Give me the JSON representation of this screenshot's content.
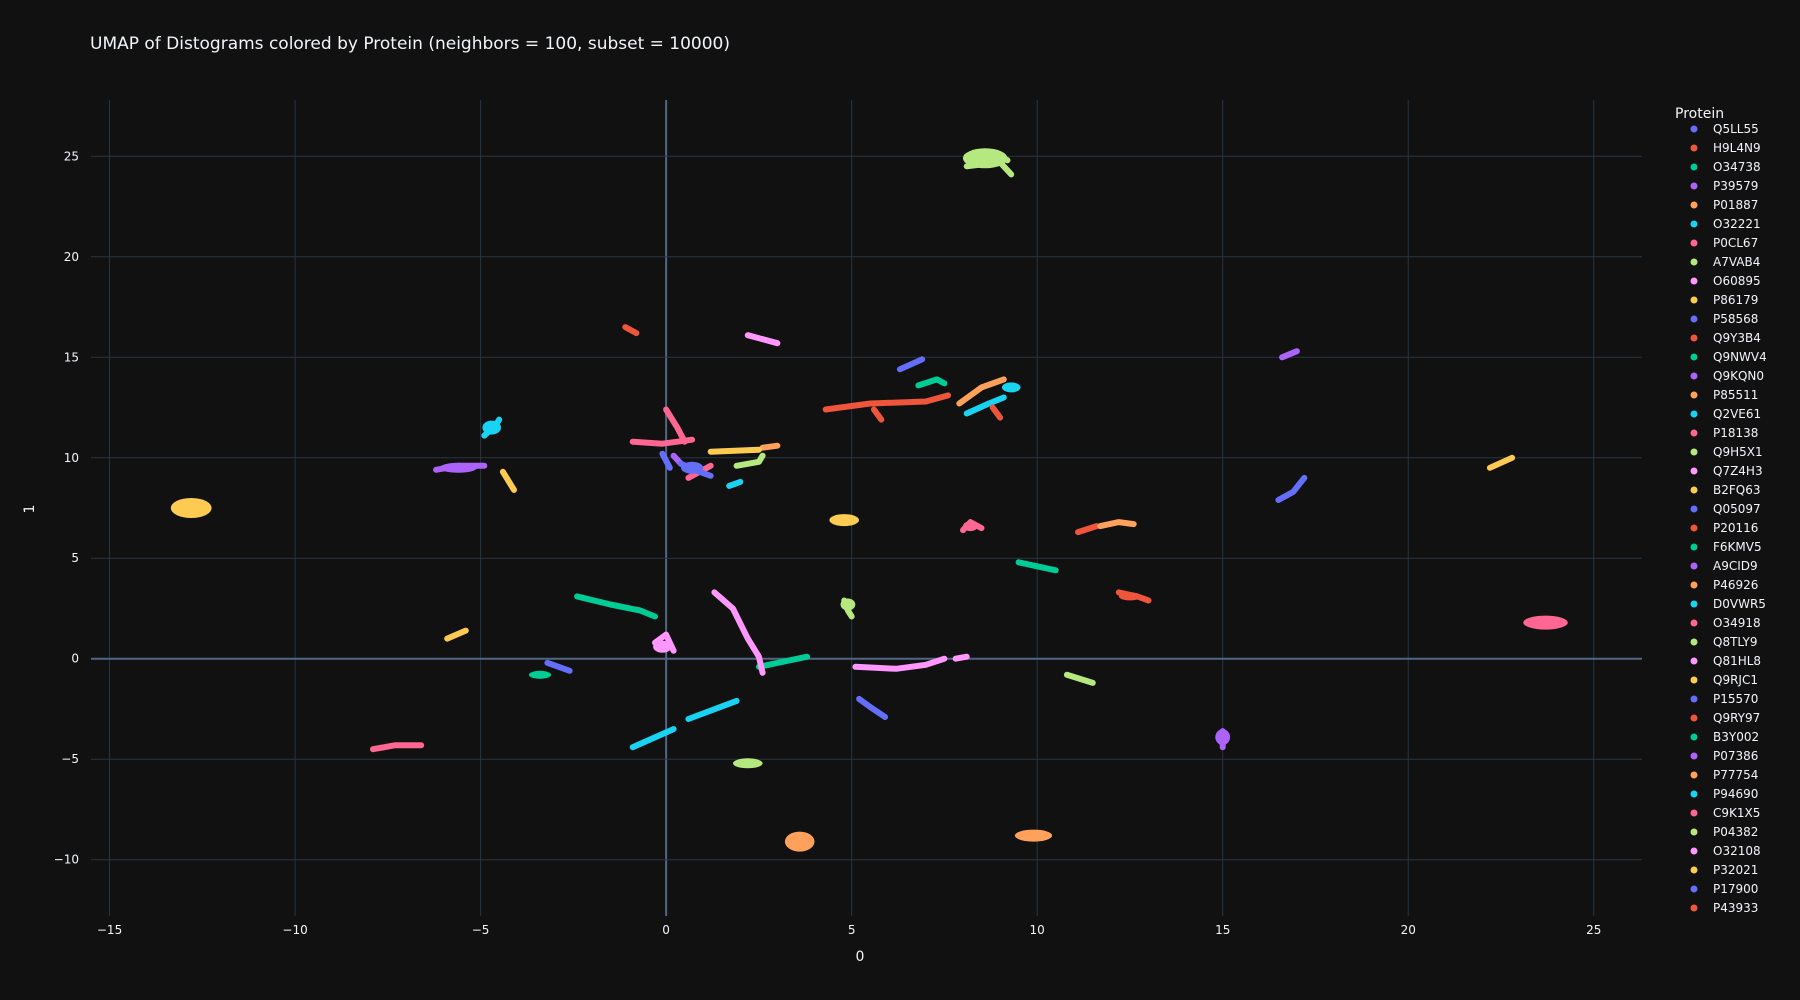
{
  "chart_data": {
    "type": "scatter",
    "title": "UMAP of Distograms colored by Protein (neighbors = 100, subset = 10000)",
    "xlabel": "0",
    "ylabel": "1",
    "xlim": [
      -15.5,
      26.3
    ],
    "ylim": [
      -12.8,
      27.8
    ],
    "xticks": [
      -15,
      -10,
      -5,
      0,
      5,
      10,
      15,
      20,
      25
    ],
    "yticks": [
      -10,
      -5,
      0,
      5,
      10,
      15,
      20,
      25
    ],
    "xtick_labels": [
      "−15",
      "−10",
      "−5",
      "0",
      "5",
      "10",
      "15",
      "20",
      "25"
    ],
    "ytick_labels": [
      "−10",
      "−5",
      "0",
      "5",
      "10",
      "15",
      "20",
      "25"
    ],
    "grid": true,
    "legend_title": "Protein",
    "legend_position": "right",
    "background": "#111111",
    "grid_color": "#283442",
    "zeroline_color": "#506784",
    "series": [
      {
        "name": "Q5LL55",
        "color": "#636efa",
        "segments": [
          [
            [
              -0.1,
              10.2
            ],
            [
              0.1,
              9.5
            ]
          ]
        ],
        "blobs": []
      },
      {
        "name": "H9L4N9",
        "color": "#EF553B",
        "segments": [
          [
            [
              4.3,
              12.4
            ],
            [
              5.5,
              12.7
            ],
            [
              7.0,
              12.8
            ],
            [
              7.6,
              13.1
            ]
          ],
          [
            [
              5.6,
              12.4
            ],
            [
              5.8,
              11.9
            ]
          ]
        ],
        "blobs": []
      },
      {
        "name": "O34738",
        "color": "#00cc96",
        "segments": [
          [
            [
              2.5,
              -0.4
            ],
            [
              3.8,
              0.1
            ]
          ]
        ],
        "blobs": []
      },
      {
        "name": "P39579",
        "color": "#ab63fa",
        "segments": [
          [
            [
              0.2,
              10.1
            ],
            [
              0.4,
              9.7
            ]
          ]
        ],
        "blobs": []
      },
      {
        "name": "P01887",
        "color": "#FFA15A",
        "segments": [
          [
            [
              2.6,
              10.5
            ],
            [
              3.0,
              10.6
            ]
          ]
        ],
        "blobs": []
      },
      {
        "name": "O32221",
        "color": "#19d3f3",
        "segments": [
          [
            [
              1.7,
              8.6
            ],
            [
              2.0,
              8.8
            ]
          ]
        ],
        "blobs": []
      },
      {
        "name": "P0CL67",
        "color": "#FF6692",
        "segments": [
          [
            [
              0.6,
              9.0
            ],
            [
              1.2,
              9.6
            ]
          ]
        ],
        "blobs": []
      },
      {
        "name": "A7VAB4",
        "color": "#B6E880",
        "segments": [
          [
            [
              8.1,
              24.5
            ],
            [
              9.0,
              24.7
            ],
            [
              9.3,
              24.1
            ]
          ],
          [
            [
              8.1,
              25.0
            ],
            [
              8.8,
              25.2
            ],
            [
              9.2,
              24.8
            ]
          ]
        ],
        "blobs": [
          [
            8.6,
            24.9,
            0.6,
            0.5
          ]
        ]
      },
      {
        "name": "O60895",
        "color": "#FF97FF",
        "segments": [
          [
            [
              2.2,
              16.1
            ],
            [
              3.0,
              15.7
            ]
          ]
        ],
        "blobs": []
      },
      {
        "name": "P86179",
        "color": "#FECB52",
        "segments": [
          [
            [
              1.2,
              10.3
            ],
            [
              2.5,
              10.4
            ]
          ]
        ],
        "blobs": []
      },
      {
        "name": "P58568",
        "color": "#636efa",
        "segments": [
          [
            [
              6.3,
              14.4
            ],
            [
              6.9,
              14.9
            ]
          ]
        ],
        "blobs": []
      },
      {
        "name": "Q9Y3B4",
        "color": "#EF553B",
        "segments": [
          [
            [
              -1.1,
              16.5
            ],
            [
              -0.8,
              16.2
            ]
          ]
        ],
        "blobs": []
      },
      {
        "name": "Q9NWV4",
        "color": "#00cc96",
        "segments": [
          [
            [
              6.8,
              13.6
            ],
            [
              7.3,
              13.9
            ],
            [
              7.5,
              13.7
            ]
          ]
        ],
        "blobs": []
      },
      {
        "name": "Q9KQN0",
        "color": "#ab63fa",
        "segments": [
          [
            [
              16.6,
              15.0
            ],
            [
              17.0,
              15.3
            ]
          ]
        ],
        "blobs": []
      },
      {
        "name": "P85511",
        "color": "#FFA15A",
        "segments": [
          [
            [
              7.9,
              12.7
            ],
            [
              8.5,
              13.5
            ],
            [
              9.1,
              13.9
            ]
          ]
        ],
        "blobs": []
      },
      {
        "name": "Q2VE61",
        "color": "#19d3f3",
        "segments": [
          [
            [
              8.1,
              12.2
            ],
            [
              8.7,
              12.7
            ],
            [
              9.1,
              13.0
            ]
          ]
        ],
        "blobs": [
          [
            9.3,
            13.5,
            0.25,
            0.25
          ]
        ]
      },
      {
        "name": "P18138",
        "color": "#FF6692",
        "segments": [
          [
            [
              -0.9,
              10.8
            ],
            [
              -0.1,
              10.7
            ],
            [
              0.7,
              10.9
            ]
          ],
          [
            [
              0.0,
              12.4
            ],
            [
              0.3,
              11.5
            ],
            [
              0.5,
              10.8
            ]
          ]
        ],
        "blobs": []
      },
      {
        "name": "Q9H5X1",
        "color": "#B6E880",
        "segments": [
          [
            [
              1.9,
              9.6
            ],
            [
              2.5,
              9.8
            ],
            [
              2.6,
              10.1
            ]
          ]
        ],
        "blobs": []
      },
      {
        "name": "Q7Z4H3",
        "color": "#FF97FF",
        "segments": [
          [
            [
              -0.3,
              0.8
            ],
            [
              0.0,
              1.2
            ],
            [
              0.2,
              0.4
            ]
          ]
        ],
        "blobs": [
          [
            -0.1,
            0.6,
            0.25,
            0.3
          ]
        ]
      },
      {
        "name": "B2FQ63",
        "color": "#FECB52",
        "segments": [],
        "blobs": [
          [
            4.8,
            6.9,
            0.4,
            0.3
          ]
        ]
      },
      {
        "name": "Q05097",
        "color": "#636efa",
        "segments": [
          [
            [
              0.4,
              9.7
            ],
            [
              0.9,
              9.3
            ],
            [
              1.2,
              9.1
            ]
          ]
        ],
        "blobs": [
          [
            0.7,
            9.5,
            0.3,
            0.3
          ]
        ]
      },
      {
        "name": "P20116",
        "color": "#EF553B",
        "segments": [
          [
            [
              11.1,
              6.3
            ],
            [
              11.6,
              6.6
            ]
          ]
        ],
        "blobs": []
      },
      {
        "name": "F6KMV5",
        "color": "#00cc96",
        "segments": [
          [
            [
              9.5,
              4.8
            ],
            [
              10.0,
              4.6
            ],
            [
              10.5,
              4.4
            ]
          ]
        ],
        "blobs": []
      },
      {
        "name": "A9CID9",
        "color": "#ab63fa",
        "segments": [
          [
            [
              -6.2,
              9.4
            ],
            [
              -5.6,
              9.6
            ],
            [
              -4.9,
              9.6
            ]
          ]
        ],
        "blobs": [
          [
            -5.6,
            9.5,
            0.5,
            0.25
          ]
        ]
      },
      {
        "name": "P46926",
        "color": "#FFA15A",
        "segments": [
          [
            [
              11.7,
              6.6
            ],
            [
              12.2,
              6.8
            ],
            [
              12.6,
              6.7
            ]
          ]
        ],
        "blobs": []
      },
      {
        "name": "D0VWR5",
        "color": "#19d3f3",
        "segments": [
          [
            [
              -4.9,
              11.1
            ],
            [
              -4.6,
              11.6
            ],
            [
              -4.5,
              11.9
            ]
          ]
        ],
        "blobs": [
          [
            -4.7,
            11.5,
            0.25,
            0.35
          ]
        ]
      },
      {
        "name": "O34918",
        "color": "#FF6692",
        "segments": [
          [
            [
              8.0,
              6.4
            ],
            [
              8.2,
              6.8
            ],
            [
              8.5,
              6.5
            ]
          ]
        ],
        "blobs": [
          [
            8.2,
            6.6,
            0.2,
            0.25
          ]
        ]
      },
      {
        "name": "Q8TLY9",
        "color": "#B6E880",
        "segments": [
          [
            [
              4.8,
              2.9
            ],
            [
              4.9,
              2.4
            ],
            [
              5.0,
              2.1
            ]
          ]
        ],
        "blobs": [
          [
            4.9,
            2.7,
            0.2,
            0.3
          ]
        ]
      },
      {
        "name": "Q81HL8",
        "color": "#FF97FF",
        "segments": [
          [
            [
              5.1,
              -0.4
            ],
            [
              6.2,
              -0.5
            ],
            [
              7.0,
              -0.3
            ],
            [
              7.5,
              0.0
            ]
          ],
          [
            [
              7.8,
              0.0
            ],
            [
              8.1,
              0.1
            ]
          ]
        ],
        "blobs": []
      },
      {
        "name": "Q9RJC1",
        "color": "#FECB52",
        "segments": [
          [
            [
              -5.9,
              1.0
            ],
            [
              -5.4,
              1.4
            ]
          ]
        ],
        "blobs": []
      },
      {
        "name": "P15570",
        "color": "#636efa",
        "segments": [
          [
            [
              5.2,
              -2.0
            ],
            [
              5.5,
              -2.4
            ],
            [
              5.9,
              -2.9
            ]
          ]
        ],
        "blobs": []
      },
      {
        "name": "Q9RY97",
        "color": "#EF553B",
        "segments": [
          [
            [
              8.8,
              12.5
            ],
            [
              9.0,
              12.0
            ]
          ]
        ],
        "blobs": []
      },
      {
        "name": "B3Y002",
        "color": "#00cc96",
        "segments": [
          [
            [
              -2.4,
              3.1
            ],
            [
              -1.5,
              2.7
            ],
            [
              -0.7,
              2.4
            ],
            [
              -0.3,
              2.1
            ]
          ]
        ],
        "blobs": [
          [
            -3.4,
            -0.8,
            0.3,
            0.2
          ]
        ]
      },
      {
        "name": "P07386",
        "color": "#ab63fa",
        "segments": [
          [
            [
              15.0,
              -3.6
            ],
            [
              15.0,
              -4.4
            ]
          ]
        ],
        "blobs": [
          [
            15.0,
            -3.9,
            0.2,
            0.4
          ]
        ]
      },
      {
        "name": "P77754",
        "color": "#FFA15A",
        "segments": [],
        "blobs": [
          [
            3.6,
            -9.1,
            0.4,
            0.5
          ],
          [
            9.9,
            -8.8,
            0.5,
            0.3
          ]
        ]
      },
      {
        "name": "P94690",
        "color": "#19d3f3",
        "segments": [
          [
            [
              -0.9,
              -4.4
            ],
            [
              0.2,
              -3.5
            ]
          ],
          [
            [
              0.6,
              -3.0
            ],
            [
              1.9,
              -2.1
            ]
          ]
        ],
        "blobs": []
      },
      {
        "name": "C9K1X5",
        "color": "#FF6692",
        "segments": [
          [
            [
              -7.9,
              -4.5
            ],
            [
              -7.3,
              -4.3
            ],
            [
              -6.6,
              -4.3
            ]
          ]
        ],
        "blobs": [
          [
            23.7,
            1.8,
            0.6,
            0.35
          ]
        ]
      },
      {
        "name": "P04382",
        "color": "#B6E880",
        "segments": [
          [
            [
              10.8,
              -0.8
            ],
            [
              11.5,
              -1.2
            ]
          ]
        ],
        "blobs": [
          [
            2.2,
            -5.2,
            0.4,
            0.25
          ]
        ]
      },
      {
        "name": "O32108",
        "color": "#FF97FF",
        "segments": [
          [
            [
              1.3,
              3.3
            ],
            [
              1.8,
              2.5
            ],
            [
              2.2,
              1.0
            ],
            [
              2.5,
              0.1
            ],
            [
              2.6,
              -0.7
            ]
          ]
        ],
        "blobs": []
      },
      {
        "name": "P32021",
        "color": "#FECB52",
        "segments": [
          [
            [
              22.2,
              9.5
            ],
            [
              22.8,
              10.0
            ]
          ],
          [
            [
              -4.4,
              9.3
            ],
            [
              -4.1,
              8.4
            ]
          ]
        ],
        "blobs": [
          [
            -12.8,
            7.5,
            0.55,
            0.5
          ]
        ]
      },
      {
        "name": "P17900",
        "color": "#636efa",
        "segments": [
          [
            [
              16.5,
              7.9
            ],
            [
              16.9,
              8.3
            ],
            [
              17.2,
              9.0
            ]
          ],
          [
            [
              -3.2,
              -0.2
            ],
            [
              -2.6,
              -0.6
            ]
          ]
        ],
        "blobs": []
      },
      {
        "name": "P43933",
        "color": "#EF553B",
        "segments": [
          [
            [
              12.2,
              3.3
            ],
            [
              12.7,
              3.1
            ],
            [
              13.0,
              2.9
            ]
          ]
        ],
        "blobs": [
          [
            12.5,
            3.1,
            0.3,
            0.2
          ]
        ]
      }
    ]
  }
}
